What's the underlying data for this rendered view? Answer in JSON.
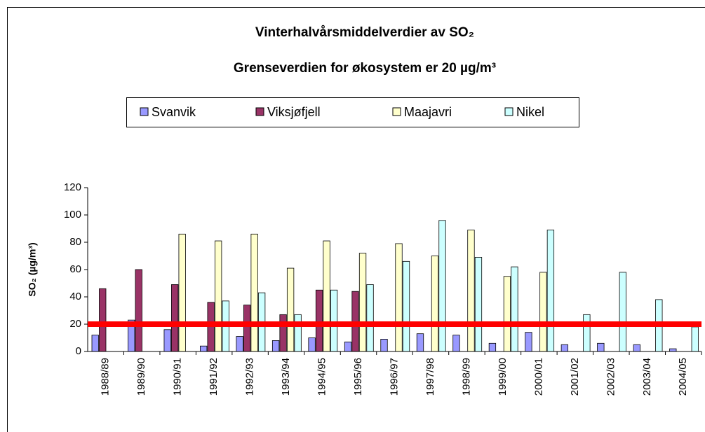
{
  "chart_data": {
    "type": "bar",
    "title": "Vinterhalvårsmiddelverdier av SO₂",
    "subtitle": "Grenseverdien for økosystem er 20 µg/m³",
    "y_label": "SO₂ (µg/m³)",
    "categories": [
      "1988/89",
      "1989/90",
      "1990/91",
      "1991/92",
      "1992/93",
      "1993/94",
      "1994/95",
      "1995/96",
      "1996/97",
      "1997/98",
      "1998/99",
      "1999/00",
      "2000/01",
      "2001/02",
      "2002/03",
      "2003/04",
      "2004/05"
    ],
    "series": [
      {
        "name": "Svanvik",
        "color": "#9999ff",
        "values": [
          12,
          23,
          16,
          4,
          11,
          8,
          10,
          7,
          9,
          13,
          12,
          6,
          14,
          5,
          6,
          5,
          2
        ]
      },
      {
        "name": "Viksjøfjell",
        "color": "#993366",
        "values": [
          46,
          60,
          49,
          36,
          34,
          27,
          45,
          44,
          null,
          null,
          null,
          null,
          null,
          null,
          null,
          null,
          null
        ]
      },
      {
        "name": "Maajavri",
        "color": "#ffffcc",
        "values": [
          null,
          null,
          86,
          81,
          86,
          61,
          81,
          72,
          79,
          70,
          89,
          55,
          58,
          null,
          null,
          null,
          null
        ]
      },
      {
        "name": "Nikel",
        "color": "#ccffff",
        "values": [
          null,
          null,
          null,
          37,
          43,
          27,
          45,
          49,
          66,
          96,
          69,
          62,
          89,
          27,
          58,
          38,
          18
        ]
      }
    ],
    "reference_line": {
      "value": 20,
      "color": "#ff0000"
    },
    "ylim": [
      0,
      120
    ],
    "yticks": [
      0,
      20,
      40,
      60,
      80,
      100,
      120
    ],
    "grid": false
  }
}
